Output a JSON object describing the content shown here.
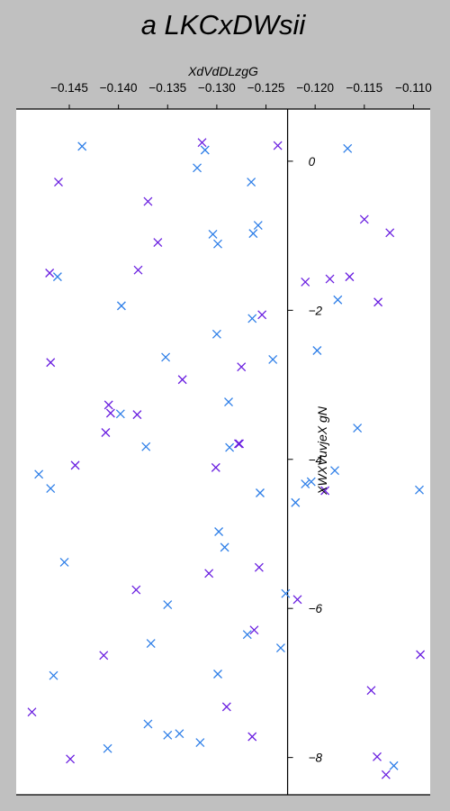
{
  "chart_data": {
    "type": "scatter",
    "title": "a LKCxDWsii",
    "xlabel": "XdVdDLzgG",
    "ylabel": "XWXVuvjeX gN",
    "xlim": [
      -0.1504,
      -0.1083
    ],
    "ylim": [
      -8.5,
      0.7
    ],
    "x_ticks": [
      -0.145,
      -0.14,
      -0.135,
      -0.13,
      -0.125,
      -0.12,
      -0.115,
      -0.11
    ],
    "x_tick_labels": [
      "−0.145",
      "−0.140",
      "−0.135",
      "−0.130",
      "−0.125",
      "−0.120",
      "−0.115",
      "−0.110"
    ],
    "y_ticks": [
      0,
      -2,
      -4,
      -6,
      -8
    ],
    "y_tick_labels": [
      "0",
      "−2",
      "−4",
      "−6",
      "−8"
    ],
    "x_axis_position": "top",
    "y_axis_crosses_x_at": -0.1228,
    "grid": false,
    "marker": "x",
    "series": [
      {
        "color": "#2f7fe8",
        "points": [
          [
            -0.1437,
            0.2
          ],
          [
            -0.1312,
            0.15
          ],
          [
            -0.132,
            -0.09
          ],
          [
            -0.1265,
            -0.28
          ],
          [
            -0.1258,
            -0.86
          ],
          [
            -0.1263,
            -0.97
          ],
          [
            -0.1304,
            -0.98
          ],
          [
            -0.1299,
            -1.11
          ],
          [
            -0.1167,
            0.17
          ],
          [
            -0.1462,
            -1.55
          ],
          [
            -0.1397,
            -1.94
          ],
          [
            -0.13,
            -2.32
          ],
          [
            -0.1264,
            -2.11
          ],
          [
            -0.1352,
            -2.63
          ],
          [
            -0.1243,
            -2.66
          ],
          [
            -0.1177,
            -1.86
          ],
          [
            -0.1198,
            -2.54
          ],
          [
            -0.1288,
            -3.23
          ],
          [
            -0.1398,
            -3.39
          ],
          [
            -0.1372,
            -3.83
          ],
          [
            -0.1287,
            -3.84
          ],
          [
            -0.1157,
            -3.58
          ],
          [
            -0.118,
            -4.15
          ],
          [
            -0.1204,
            -4.3
          ],
          [
            -0.121,
            -4.33
          ],
          [
            -0.122,
            -4.58
          ],
          [
            -0.1256,
            -4.45
          ],
          [
            -0.1481,
            -4.2
          ],
          [
            -0.1469,
            -4.39
          ],
          [
            -0.1298,
            -4.97
          ],
          [
            -0.1292,
            -5.18
          ],
          [
            -0.1455,
            -5.38
          ],
          [
            -0.135,
            -5.95
          ],
          [
            -0.123,
            -5.8
          ],
          [
            -0.1235,
            -6.53
          ],
          [
            -0.1269,
            -6.35
          ],
          [
            -0.1367,
            -6.47
          ],
          [
            -0.1466,
            -6.9
          ],
          [
            -0.1299,
            -6.88
          ],
          [
            -0.137,
            -7.55
          ],
          [
            -0.135,
            -7.7
          ],
          [
            -0.1338,
            -7.68
          ],
          [
            -0.1317,
            -7.8
          ],
          [
            -0.1411,
            -7.88
          ],
          [
            -0.112,
            -8.11
          ],
          [
            -0.1094,
            -4.41
          ]
        ]
      },
      {
        "color": "#6a1fe0",
        "points": [
          [
            -0.1315,
            0.25
          ],
          [
            -0.1238,
            0.21
          ],
          [
            -0.1461,
            -0.28
          ],
          [
            -0.137,
            -0.54
          ],
          [
            -0.136,
            -1.09
          ],
          [
            -0.147,
            -1.5
          ],
          [
            -0.138,
            -1.46
          ],
          [
            -0.121,
            -1.62
          ],
          [
            -0.1254,
            -2.06
          ],
          [
            -0.1165,
            -1.55
          ],
          [
            -0.1185,
            -1.58
          ],
          [
            -0.115,
            -0.78
          ],
          [
            -0.1124,
            -0.96
          ],
          [
            -0.1136,
            -1.89
          ],
          [
            -0.1469,
            -2.7
          ],
          [
            -0.1275,
            -2.76
          ],
          [
            -0.1335,
            -2.93
          ],
          [
            -0.141,
            -3.27
          ],
          [
            -0.1408,
            -3.38
          ],
          [
            -0.1381,
            -3.4
          ],
          [
            -0.1413,
            -3.64
          ],
          [
            -0.1444,
            -4.08
          ],
          [
            -0.1277,
            -3.79
          ],
          [
            -0.1278,
            -3.79
          ],
          [
            -0.1301,
            -4.11
          ],
          [
            -0.119,
            -4.42
          ],
          [
            -0.1308,
            -5.53
          ],
          [
            -0.1257,
            -5.45
          ],
          [
            -0.1382,
            -5.75
          ],
          [
            -0.1218,
            -5.88
          ],
          [
            -0.1415,
            -6.63
          ],
          [
            -0.1262,
            -6.29
          ],
          [
            -0.1143,
            -7.1
          ],
          [
            -0.1093,
            -6.62
          ],
          [
            -0.1488,
            -7.39
          ],
          [
            -0.129,
            -7.32
          ],
          [
            -0.1449,
            -8.02
          ],
          [
            -0.1264,
            -7.72
          ],
          [
            -0.1137,
            -7.99
          ],
          [
            -0.1128,
            -8.23
          ]
        ]
      }
    ]
  }
}
